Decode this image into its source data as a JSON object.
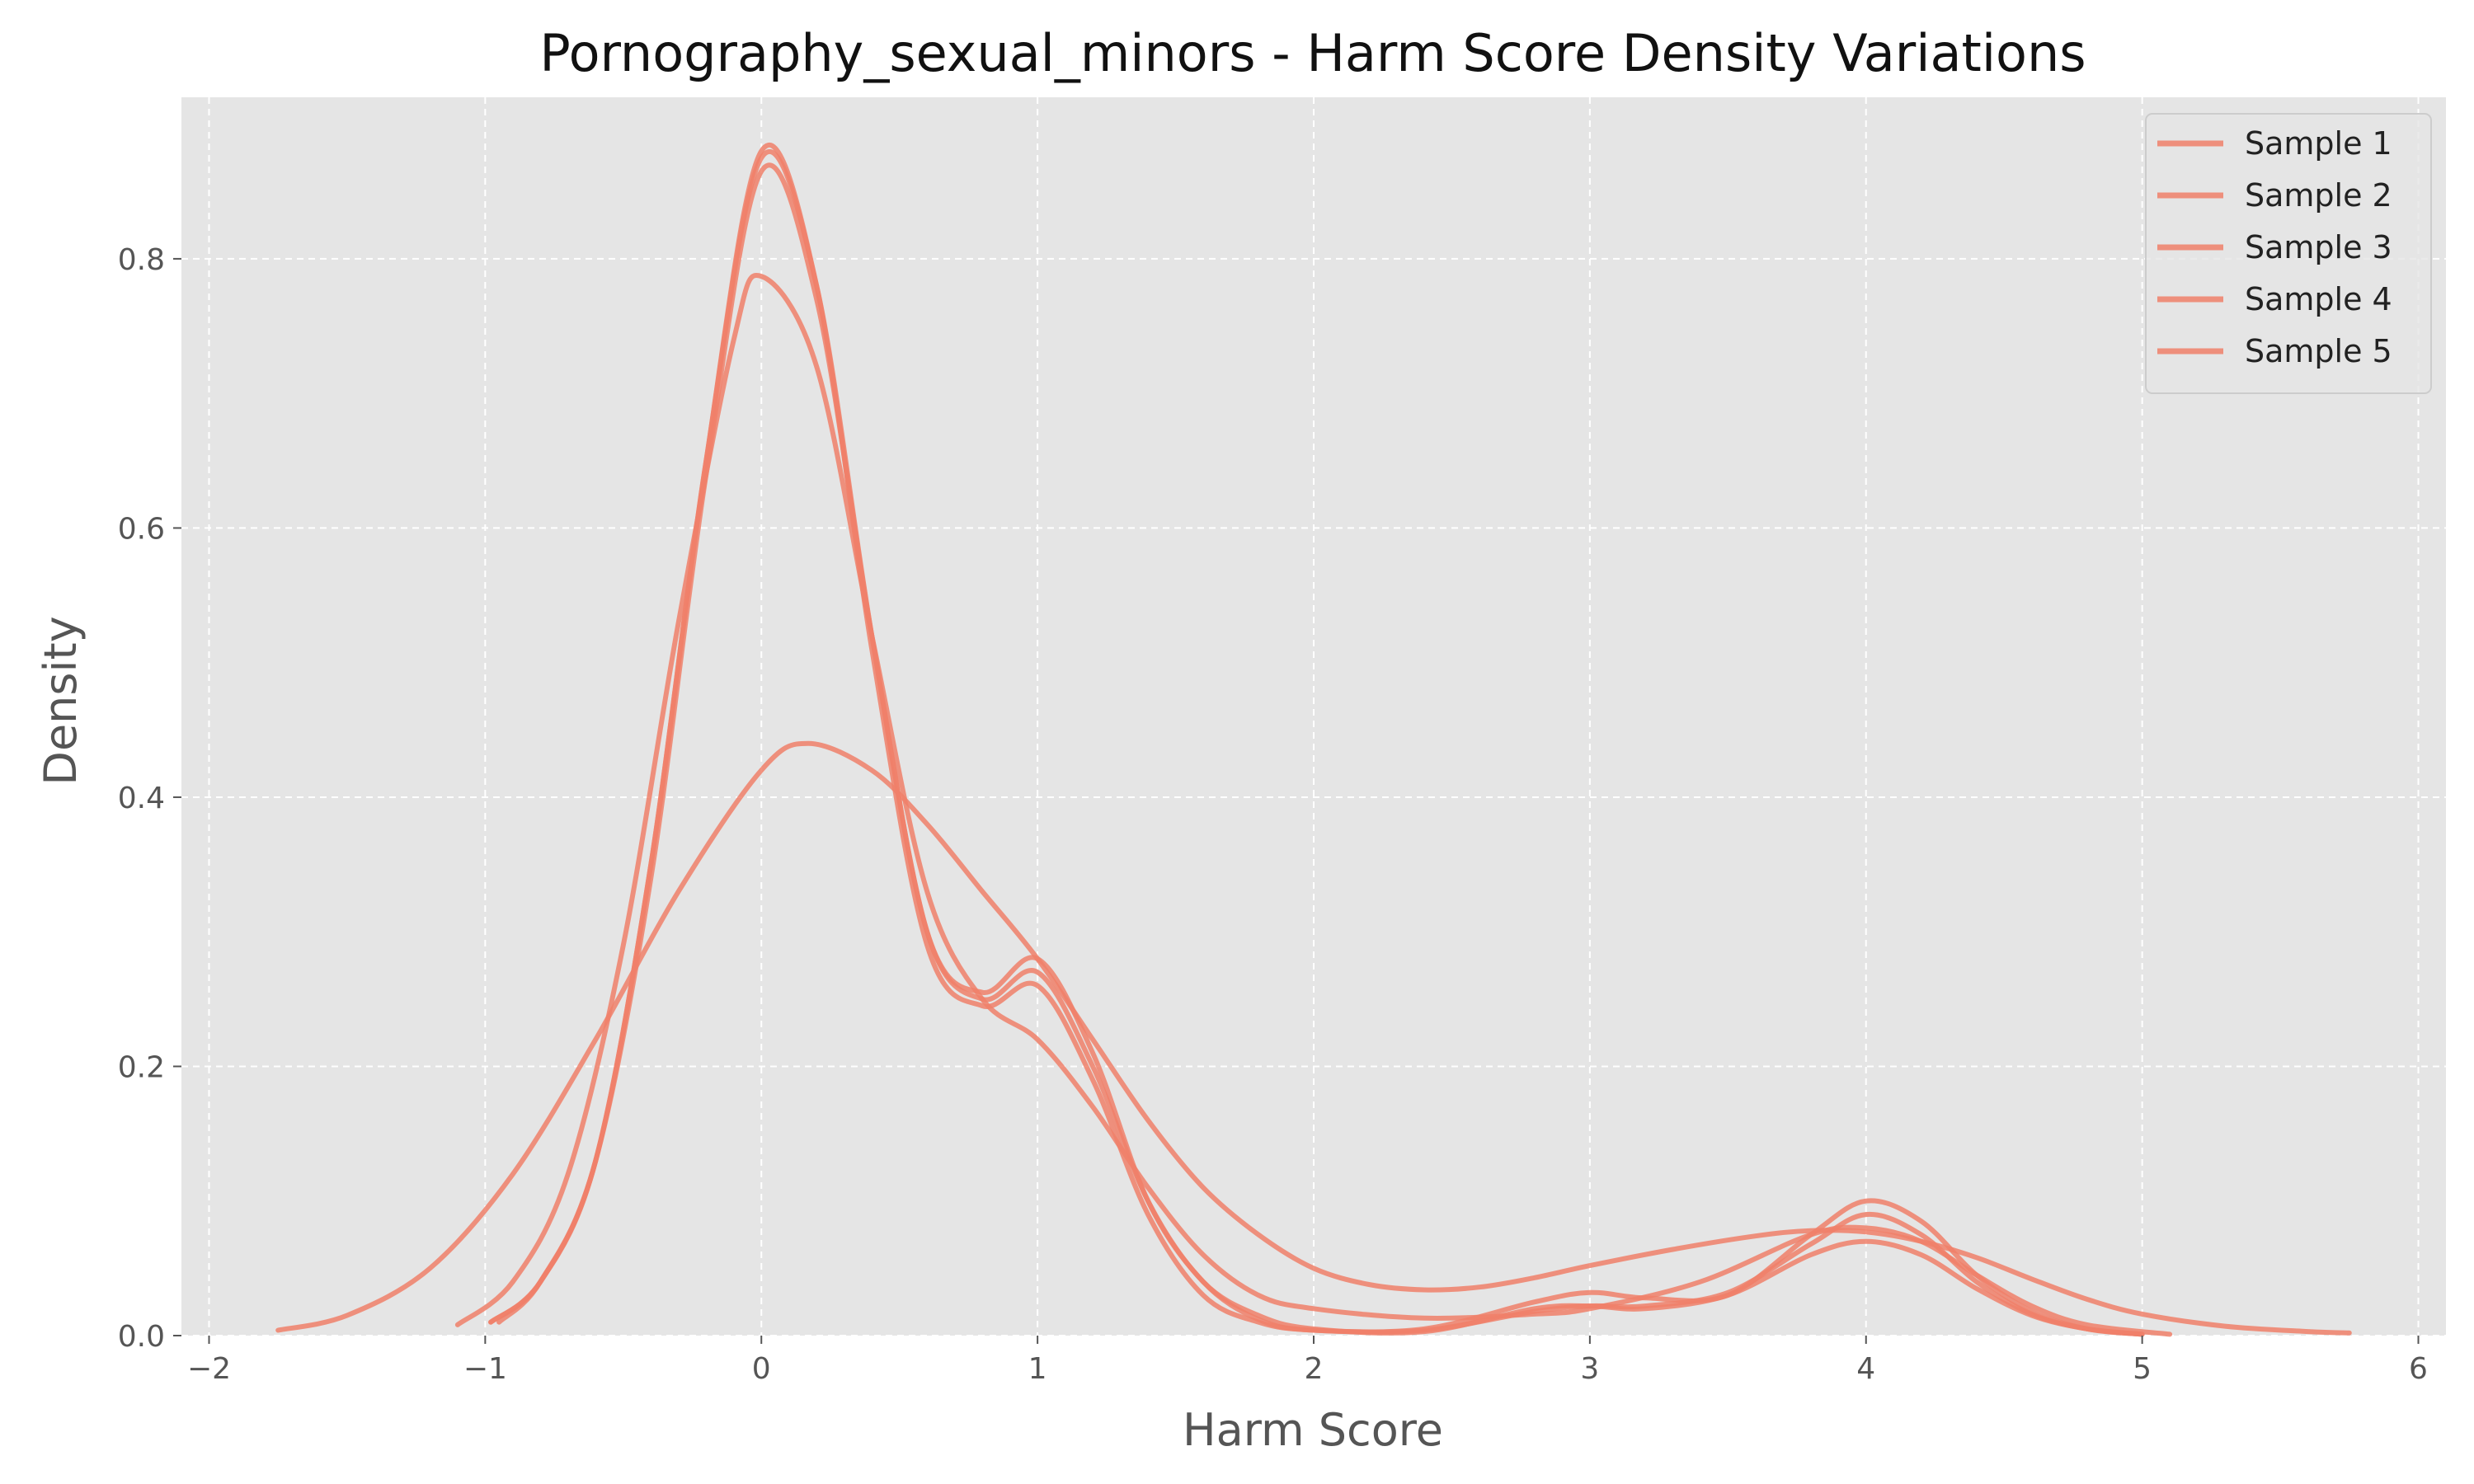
{
  "chart_data": {
    "type": "line",
    "title": "Pornography_sexual_minors - Harm Score Density Variations",
    "xlabel": "Harm Score",
    "ylabel": "Density",
    "xlim": [
      -2.1,
      6.1
    ],
    "ylim": [
      0,
      0.92
    ],
    "xticks": [
      -2,
      -1,
      0,
      1,
      2,
      3,
      4,
      5,
      6
    ],
    "xtick_labels": [
      "−2",
      "−1",
      "0",
      "1",
      "2",
      "3",
      "4",
      "5",
      "6"
    ],
    "yticks": [
      0.0,
      0.2,
      0.4,
      0.6,
      0.8
    ],
    "ytick_labels": [
      "0.0",
      "0.2",
      "0.4",
      "0.6",
      "0.8"
    ],
    "grid": true,
    "legend_position": "top-right",
    "colors": {
      "line": "#f0806a",
      "plot_bg": "#e5e5e5",
      "grid": "#ffffff",
      "text": "#555555"
    },
    "series": [
      {
        "name": "Sample 1",
        "values": [
          [
            -0.98,
            0.01
          ],
          [
            -0.8,
            0.04
          ],
          [
            -0.6,
            0.13
          ],
          [
            -0.4,
            0.35
          ],
          [
            -0.2,
            0.65
          ],
          [
            0.0,
            0.875
          ],
          [
            0.2,
            0.78
          ],
          [
            0.4,
            0.52
          ],
          [
            0.6,
            0.3
          ],
          [
            0.8,
            0.25
          ],
          [
            1.0,
            0.27
          ],
          [
            1.2,
            0.2
          ],
          [
            1.4,
            0.1
          ],
          [
            1.6,
            0.04
          ],
          [
            1.8,
            0.015
          ],
          [
            2.0,
            0.005
          ],
          [
            2.4,
            0.003
          ],
          [
            2.8,
            0.02
          ],
          [
            3.0,
            0.022
          ],
          [
            3.2,
            0.02
          ],
          [
            3.5,
            0.03
          ],
          [
            3.8,
            0.06
          ],
          [
            4.0,
            0.07
          ],
          [
            4.2,
            0.06
          ],
          [
            4.4,
            0.035
          ],
          [
            4.6,
            0.015
          ],
          [
            4.8,
            0.005
          ],
          [
            5.0,
            0.001
          ]
        ]
      },
      {
        "name": "Sample 2",
        "values": [
          [
            -0.98,
            0.01
          ],
          [
            -0.8,
            0.04
          ],
          [
            -0.6,
            0.13
          ],
          [
            -0.4,
            0.34
          ],
          [
            -0.2,
            0.64
          ],
          [
            0.0,
            0.865
          ],
          [
            0.2,
            0.77
          ],
          [
            0.4,
            0.52
          ],
          [
            0.6,
            0.3
          ],
          [
            0.8,
            0.255
          ],
          [
            1.0,
            0.28
          ],
          [
            1.2,
            0.21
          ],
          [
            1.4,
            0.1
          ],
          [
            1.6,
            0.04
          ],
          [
            1.8,
            0.012
          ],
          [
            2.0,
            0.004
          ],
          [
            2.4,
            0.005
          ],
          [
            2.8,
            0.025
          ],
          [
            3.0,
            0.032
          ],
          [
            3.2,
            0.028
          ],
          [
            3.5,
            0.03
          ],
          [
            3.8,
            0.075
          ],
          [
            4.0,
            0.1
          ],
          [
            4.2,
            0.085
          ],
          [
            4.4,
            0.045
          ],
          [
            4.6,
            0.018
          ],
          [
            4.8,
            0.005
          ],
          [
            5.0,
            0.001
          ]
        ]
      },
      {
        "name": "Sample 3",
        "values": [
          [
            -1.1,
            0.008
          ],
          [
            -0.9,
            0.04
          ],
          [
            -0.7,
            0.12
          ],
          [
            -0.5,
            0.29
          ],
          [
            -0.3,
            0.53
          ],
          [
            -0.1,
            0.74
          ],
          [
            0.0,
            0.787
          ],
          [
            0.2,
            0.72
          ],
          [
            0.4,
            0.52
          ],
          [
            0.6,
            0.33
          ],
          [
            0.8,
            0.25
          ],
          [
            1.0,
            0.22
          ],
          [
            1.2,
            0.17
          ],
          [
            1.4,
            0.11
          ],
          [
            1.6,
            0.06
          ],
          [
            1.8,
            0.03
          ],
          [
            2.0,
            0.02
          ],
          [
            2.4,
            0.013
          ],
          [
            2.8,
            0.016
          ],
          [
            3.0,
            0.02
          ],
          [
            3.4,
            0.04
          ],
          [
            3.8,
            0.075
          ],
          [
            4.0,
            0.08
          ],
          [
            4.2,
            0.07
          ],
          [
            4.4,
            0.045
          ],
          [
            4.6,
            0.022
          ],
          [
            4.8,
            0.008
          ],
          [
            5.1,
            0.001
          ]
        ]
      },
      {
        "name": "Sample 4",
        "values": [
          [
            -0.95,
            0.01
          ],
          [
            -0.8,
            0.04
          ],
          [
            -0.6,
            0.13
          ],
          [
            -0.4,
            0.35
          ],
          [
            -0.2,
            0.65
          ],
          [
            0.0,
            0.88
          ],
          [
            0.2,
            0.78
          ],
          [
            0.4,
            0.51
          ],
          [
            0.6,
            0.29
          ],
          [
            0.8,
            0.245
          ],
          [
            1.0,
            0.26
          ],
          [
            1.2,
            0.19
          ],
          [
            1.4,
            0.09
          ],
          [
            1.6,
            0.03
          ],
          [
            1.8,
            0.01
          ],
          [
            2.0,
            0.004
          ],
          [
            2.4,
            0.004
          ],
          [
            2.8,
            0.018
          ],
          [
            3.0,
            0.022
          ],
          [
            3.2,
            0.022
          ],
          [
            3.5,
            0.032
          ],
          [
            3.8,
            0.068
          ],
          [
            4.0,
            0.09
          ],
          [
            4.2,
            0.075
          ],
          [
            4.4,
            0.04
          ],
          [
            4.6,
            0.016
          ],
          [
            4.8,
            0.005
          ],
          [
            5.0,
            0.001
          ]
        ]
      },
      {
        "name": "Sample 5",
        "values": [
          [
            -1.75,
            0.004
          ],
          [
            -1.5,
            0.015
          ],
          [
            -1.2,
            0.05
          ],
          [
            -0.9,
            0.12
          ],
          [
            -0.6,
            0.22
          ],
          [
            -0.3,
            0.33
          ],
          [
            0.0,
            0.42
          ],
          [
            0.17,
            0.44
          ],
          [
            0.4,
            0.42
          ],
          [
            0.6,
            0.38
          ],
          [
            0.8,
            0.33
          ],
          [
            1.0,
            0.28
          ],
          [
            1.2,
            0.22
          ],
          [
            1.4,
            0.16
          ],
          [
            1.6,
            0.11
          ],
          [
            1.8,
            0.075
          ],
          [
            2.0,
            0.05
          ],
          [
            2.2,
            0.038
          ],
          [
            2.4,
            0.034
          ],
          [
            2.6,
            0.036
          ],
          [
            2.8,
            0.043
          ],
          [
            3.0,
            0.052
          ],
          [
            3.3,
            0.064
          ],
          [
            3.6,
            0.074
          ],
          [
            3.8,
            0.078
          ],
          [
            4.0,
            0.077
          ],
          [
            4.2,
            0.07
          ],
          [
            4.4,
            0.058
          ],
          [
            4.6,
            0.042
          ],
          [
            4.8,
            0.027
          ],
          [
            5.0,
            0.016
          ],
          [
            5.3,
            0.007
          ],
          [
            5.6,
            0.003
          ],
          [
            5.75,
            0.002
          ]
        ]
      }
    ]
  }
}
